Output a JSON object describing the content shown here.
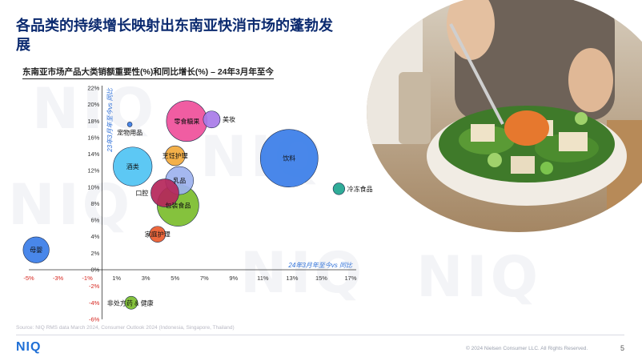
{
  "page": {
    "title": "各品类的持续增长映射出东南亚快消市场的蓬勃发展",
    "source": "Source: NIQ RMS data March 2024, Consumer Outlook 2024 (Indonesia, Singapore, Thailand)",
    "copyright": "© 2024 Nielsen Consumer LLC. All Rights Reserved.",
    "page_number": "5",
    "logo": "NIQ",
    "watermark": "NIQ"
  },
  "photo": {
    "icon": "salad-bowl-photo"
  },
  "chart_data": {
    "type": "bubble",
    "title": "东南亚市场产品大类销额重要性(%)和同比增长(%) – 24年3月年至今",
    "xlabel": "24年3月年至今vs 同比",
    "ylabel": "23年3月年至今vs 同比",
    "xlim": [
      -6,
      18
    ],
    "ylim": [
      -6,
      22
    ],
    "x_ticks": [
      "-5%",
      "-3%",
      "-1%",
      "1%",
      "3%",
      "5%",
      "7%",
      "9%",
      "11%",
      "13%",
      "15%",
      "17%"
    ],
    "y_ticks": [
      "-6%",
      "-4%",
      "-2%",
      "0%",
      "2%",
      "4%",
      "6%",
      "8%",
      "10%",
      "12%",
      "14%",
      "16%",
      "18%",
      "20%",
      "22%"
    ],
    "negative_tick_color": "#d6261f",
    "positive_tick_color": "#333333",
    "axis_title_color": "#2d6fd8",
    "grid": false,
    "bubbles": [
      {
        "label": "母婴",
        "x": -4.5,
        "y": 2.4,
        "size": 4.5,
        "color": "#3a7de8",
        "label_pos": "center"
      },
      {
        "label": "宠物用品",
        "x": 1.9,
        "y": 17.6,
        "size": 0.12,
        "color": "#3a7de8",
        "label_pos": "below"
      },
      {
        "label": "酒类",
        "x": 2.1,
        "y": 12.5,
        "size": 10,
        "color": "#4fc3f3",
        "label_pos": "center"
      },
      {
        "label": "零食糖果",
        "x": 5.8,
        "y": 18.0,
        "size": 11,
        "color": "#ef4f9a",
        "label_pos": "center"
      },
      {
        "label": "美妆",
        "x": 7.5,
        "y": 18.2,
        "size": 1.9,
        "color": "#a87be8",
        "label_pos": "right"
      },
      {
        "label": "饮料",
        "x": 12.8,
        "y": 13.5,
        "size": 22,
        "color": "#3a7de8",
        "label_pos": "center"
      },
      {
        "label": "冷冻食品",
        "x": 16.2,
        "y": 9.8,
        "size": 0.9,
        "color": "#1ea58f",
        "label_pos": "right"
      },
      {
        "label": "烹饪护理",
        "x": 5.0,
        "y": 13.8,
        "size": 2.6,
        "color": "#f2a93b",
        "label_pos": "center"
      },
      {
        "label": "乳品",
        "x": 5.3,
        "y": 10.8,
        "size": 5.2,
        "color": "#9db2ef",
        "label_pos": "center"
      },
      {
        "label": "口腔",
        "x": 4.3,
        "y": 9.3,
        "size": 5.2,
        "color": "#b5265a",
        "label_pos": "left"
      },
      {
        "label": "包装食品",
        "x": 5.2,
        "y": 7.8,
        "size": 11.5,
        "color": "#7bbd2c",
        "label_pos": "center"
      },
      {
        "label": "家庭护理",
        "x": 3.8,
        "y": 4.3,
        "size": 1.7,
        "color": "#ea5b2c",
        "label_pos": "center"
      },
      {
        "label": "非处方药 & 健康",
        "x": 2.0,
        "y": -4.0,
        "size": 1.1,
        "color": "#7bbd2c",
        "label_pos": "overlay"
      }
    ]
  }
}
